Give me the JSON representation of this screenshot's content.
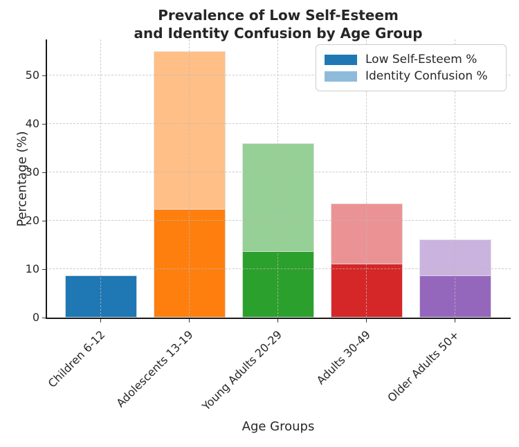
{
  "figure": {
    "title_line1": "Prevalence of Low Self-Esteem",
    "title_line2": "and Identity Confusion by Age Group",
    "xlabel": "Age Groups",
    "ylabel": "Percentage (%)"
  },
  "legend": {
    "position": "upper right",
    "items": [
      {
        "label": "Low Self-Esteem %",
        "color": "#1f77b4"
      },
      {
        "label": "Identity Confusion %",
        "color": "#8fbbda"
      }
    ]
  },
  "chart_data": {
    "type": "bar",
    "subtype": "overlaid",
    "title": "Prevalence of Low Self-Esteem and Identity Confusion by Age Group",
    "xlabel": "Age Groups",
    "ylabel": "Percentage (%)",
    "categories": [
      "Children 6-12",
      "Adolescents 13-19",
      "Young Adults 20-29",
      "Adults 30-49",
      "Older Adults 50+"
    ],
    "series": [
      {
        "name": "Low Self-Esteem %",
        "values": [
          8.7,
          22.4,
          13.7,
          11.2,
          8.7
        ]
      },
      {
        "name": "Identity Confusion %",
        "values": [
          null,
          55.0,
          36.0,
          23.6,
          16.1
        ],
        "render_note": "lighter shade drawn behind the solid bar; value for Children 6-12 is hidden behind the taller Low Self-Esteem bar"
      }
    ],
    "yticks": [
      0,
      10,
      20,
      30,
      40,
      50
    ],
    "ylim": [
      0,
      57.5
    ],
    "grid": true,
    "grid_style": "dashed, light gray, horizontal and vertical, drawn over bars",
    "legend_position": "upper right",
    "bar_colors_solid": [
      "#1f77b4",
      "#ff7f0e",
      "#2ca02c",
      "#d62728",
      "#9467bd"
    ],
    "bar_colors_light": [
      "#8fbbda",
      "#ffbf87",
      "#96d096",
      "#eb9394",
      "#cab3de"
    ]
  }
}
